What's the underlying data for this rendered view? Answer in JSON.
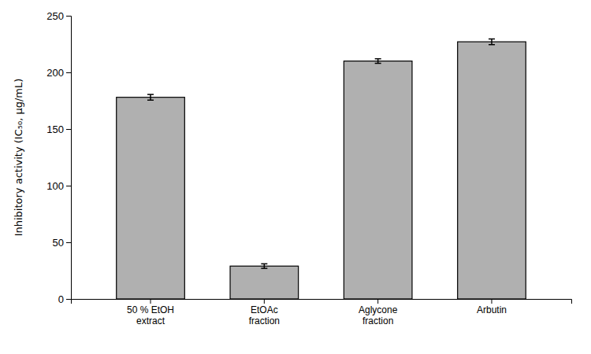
{
  "chart_data": {
    "type": "bar",
    "categories": [
      "50 % EtOH\nextract",
      "EtOAc\nfraction",
      "Aglycone\nfraction",
      "Arbutin"
    ],
    "values": [
      178,
      29,
      210,
      227
    ],
    "errors": [
      2.5,
      2.0,
      2.0,
      2.5
    ],
    "color": "#b0b0b0",
    "ylabel": "Inhibitory activity (IC₅₀, μg/mL)",
    "ylim": [
      0,
      250
    ],
    "yticks": [
      0,
      50,
      100,
      150,
      200,
      250
    ],
    "grid": false
  }
}
